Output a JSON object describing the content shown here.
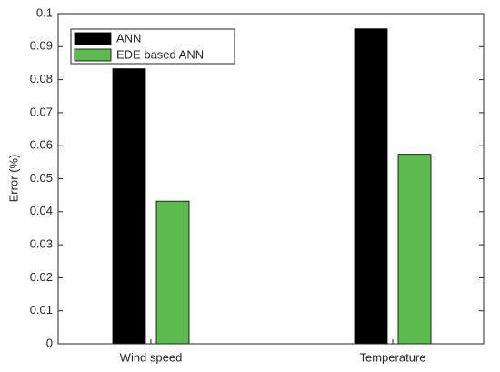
{
  "chart_data": {
    "type": "bar",
    "y_label": "Error (%)",
    "categories": [
      "Wind speed",
      "Temperature"
    ],
    "series": [
      {
        "name": "ANN",
        "color": "#000000",
        "values": [
          0.0833,
          0.0954
        ]
      },
      {
        "name": "EDE based ANN",
        "color": "#5bbb4c",
        "values": [
          0.0432,
          0.0574
        ]
      }
    ],
    "ylim": [
      0,
      0.1
    ],
    "yticks": [
      0,
      0.01,
      0.02,
      0.03,
      0.04,
      0.05,
      0.06,
      0.07,
      0.08,
      0.09,
      0.1
    ],
    "legend": "upper-left"
  }
}
